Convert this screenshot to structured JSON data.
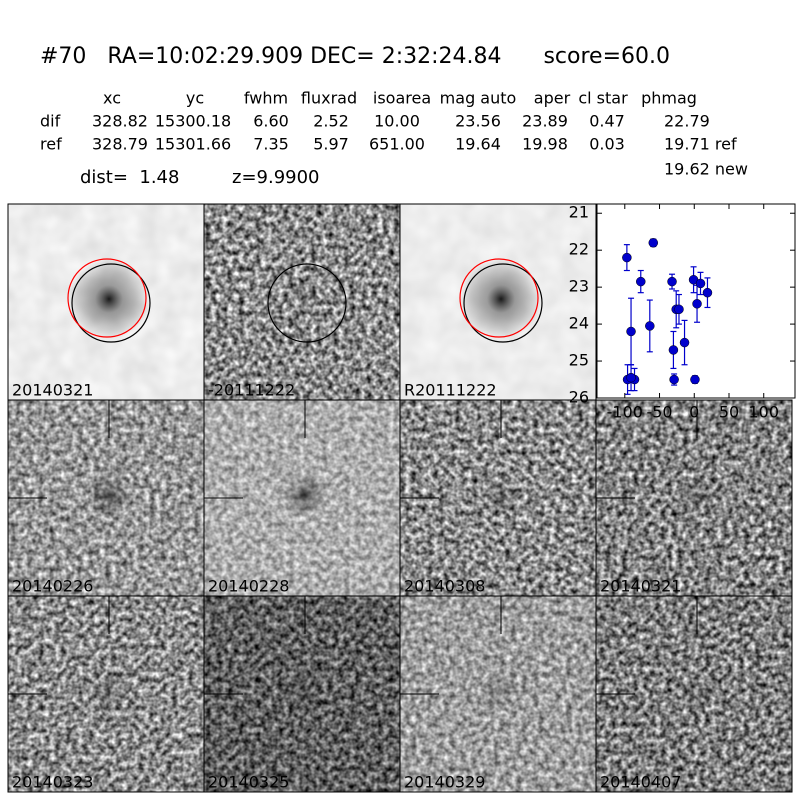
{
  "header": {
    "title": "#70   RA=10:02:29.909 DEC= 2:32:24.84      score=60.0",
    "columns": [
      "xc",
      "yc",
      "fwhm",
      "fluxrad",
      "isoarea",
      "mag auto",
      "aper",
      "cl star",
      "phmag"
    ],
    "rows": [
      {
        "name": "dif",
        "values": [
          "328.82",
          "15300.18",
          "6.60",
          "2.52",
          "10.00",
          "23.56",
          "23.89",
          "0.47",
          "22.79"
        ]
      },
      {
        "name": "ref",
        "values": [
          "328.79",
          "15301.66",
          "7.35",
          "5.97",
          "651.00",
          "19.64",
          "19.98",
          "0.03",
          "19.71 ref"
        ]
      }
    ],
    "extra": "19.62 new",
    "dist": "dist=  1.48",
    "z": "z=9.9900"
  },
  "stamps": [
    {
      "label": "20140321",
      "color": "#000000"
    },
    {
      "label": "-20111222",
      "color": "#000000"
    },
    {
      "label": "R20111222",
      "color": "#000000"
    },
    {
      "label": "20140226",
      "color": "#000000"
    },
    {
      "label": "20140228",
      "color": "#000000"
    },
    {
      "label": "20140308",
      "color": "#000000"
    },
    {
      "label": "20140321",
      "color": "#ff0000"
    },
    {
      "label": "20140323",
      "color": "#000000"
    },
    {
      "label": "20140325",
      "color": "#000000"
    },
    {
      "label": "20140329",
      "color": "#000000"
    },
    {
      "label": "20140407",
      "color": "#000000"
    }
  ],
  "chart_data": {
    "type": "errorbar",
    "color": "#0000cc",
    "x": [
      -97,
      -91,
      -96,
      -86,
      -91,
      -77,
      -59,
      -64,
      -32,
      -30,
      -29,
      -26,
      -22,
      -14,
      -1,
      1,
      4,
      9,
      19
    ],
    "y": [
      22.2,
      24.2,
      25.5,
      25.5,
      25.45,
      22.85,
      21.8,
      24.05,
      22.85,
      24.7,
      25.5,
      23.6,
      23.6,
      24.5,
      22.8,
      25.5,
      23.45,
      22.9,
      23.15
    ],
    "yerr": [
      0.35,
      0.9,
      0.4,
      0.3,
      0.35,
      0.3,
      0.1,
      0.7,
      0.2,
      0.5,
      0.15,
      0.5,
      0.4,
      0.6,
      0.35,
      0.1,
      0.5,
      0.3,
      0.4
    ],
    "xlim": [
      -140,
      145
    ],
    "ylim": [
      20.75,
      26
    ],
    "y_inverted": true,
    "xticks": [
      -100,
      -50,
      0,
      50,
      100
    ],
    "yticks": [
      21,
      22,
      23,
      24,
      25,
      26
    ]
  }
}
